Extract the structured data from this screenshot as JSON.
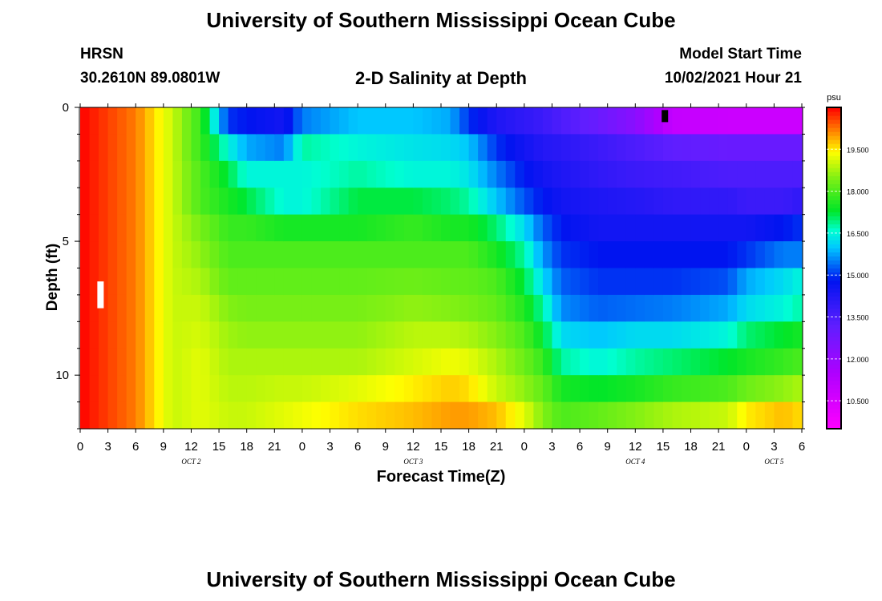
{
  "header": {
    "title": "University of Southern Mississippi Ocean Cube",
    "station": "HRSN",
    "coordinates": "30.2610N  89.0801W",
    "subtitle": "2-D Salinity at Depth",
    "model_start_label": "Model Start Time",
    "model_start_value": "10/02/2021 Hour 21"
  },
  "footer": {
    "title": "University of Southern Mississippi Ocean Cube"
  },
  "chart_data": {
    "type": "heatmap",
    "title": "2-D Salinity at Depth",
    "xlabel": "Forecast Time(Z)",
    "ylabel": "Depth (ft)",
    "x_unit": "hours from Oct 2 00Z",
    "x_range": [
      0,
      78
    ],
    "x_ticks": [
      0,
      3,
      6,
      9,
      12,
      15,
      18,
      21,
      24,
      27,
      30,
      33,
      36,
      39,
      42,
      45,
      48,
      51,
      54,
      57,
      60,
      63,
      66,
      69,
      72,
      75,
      78
    ],
    "x_tick_labels": [
      "0",
      "3",
      "6",
      "9",
      "12",
      "15",
      "18",
      "21",
      "0",
      "3",
      "6",
      "9",
      "12",
      "15",
      "18",
      "21",
      "0",
      "3",
      "6",
      "9",
      "12",
      "15",
      "18",
      "21",
      "0",
      "3",
      "6"
    ],
    "day_labels": [
      {
        "text": "OCT 2",
        "x": 12
      },
      {
        "text": "OCT 3",
        "x": 36
      },
      {
        "text": "OCT 4",
        "x": 60
      },
      {
        "text": "OCT 5",
        "x": 75
      }
    ],
    "y_range": [
      0,
      12
    ],
    "y_ticks_major": [
      0,
      5,
      10
    ],
    "y_tick_labels": [
      "0",
      "5",
      "10"
    ],
    "depth_levels_ft": [
      0.5,
      1.5,
      2.5,
      3.5,
      4.5,
      5.5,
      6.5,
      7.5,
      8.5,
      9.5,
      10.5,
      11.5
    ],
    "colorbar": {
      "unit": "psu",
      "min": 9.5,
      "max": 21.0,
      "tick_values": [
        10.5,
        12.0,
        13.5,
        15.0,
        16.5,
        18.0,
        19.5
      ],
      "tick_labels": [
        "10.500",
        "12.000",
        "13.500",
        "15.000",
        "16.500",
        "18.000",
        "19.500"
      ]
    },
    "salinity_keyframes": [
      {
        "hour": 0,
        "values": [
          21,
          21,
          21,
          21,
          21,
          21,
          21,
          21,
          21,
          21,
          21,
          21
        ]
      },
      {
        "hour": 6,
        "values": [
          20.2,
          20.2,
          20.2,
          20.2,
          20.2,
          20.2,
          20.2,
          20.2,
          20.2,
          20.2,
          20.2,
          20.2
        ]
      },
      {
        "hour": 10,
        "values": [
          19,
          19,
          19,
          19,
          19,
          19,
          19,
          19,
          19,
          19,
          19,
          19
        ]
      },
      {
        "hour": 13,
        "values": [
          17.8,
          17.8,
          18,
          18,
          18.4,
          18.6,
          18.8,
          19,
          19.1,
          19.2,
          19.2,
          19.2
        ]
      },
      {
        "hour": 16,
        "values": [
          15,
          16.5,
          17.2,
          17.5,
          17.8,
          18,
          18.2,
          18.5,
          18.7,
          18.8,
          18.9,
          19
        ]
      },
      {
        "hour": 18,
        "values": [
          14.8,
          15.8,
          16.5,
          17.2,
          17.8,
          18,
          18.2,
          18.4,
          18.6,
          18.8,
          18.9,
          19
        ]
      },
      {
        "hour": 22,
        "values": [
          14.5,
          15.5,
          16.5,
          16.5,
          17.5,
          18,
          18.2,
          18.4,
          18.6,
          18.8,
          19,
          19.2
        ]
      },
      {
        "hour": 24,
        "values": [
          15.5,
          16.8,
          16.5,
          16.5,
          17.5,
          18,
          18.2,
          18.4,
          18.6,
          18.8,
          19,
          19.3
        ]
      },
      {
        "hour": 30,
        "values": [
          16,
          16.5,
          16.8,
          17.2,
          17.5,
          18,
          18.2,
          18.4,
          18.6,
          18.8,
          19.2,
          19.6
        ]
      },
      {
        "hour": 36,
        "values": [
          16,
          16.3,
          16.5,
          17.2,
          17.8,
          18,
          18.3,
          18.6,
          18.9,
          19.1,
          19.5,
          19.8
        ]
      },
      {
        "hour": 40,
        "values": [
          15.8,
          16.2,
          16.5,
          17,
          17.5,
          18,
          18.2,
          18.5,
          18.9,
          19.3,
          19.7,
          20
        ]
      },
      {
        "hour": 42,
        "values": [
          15,
          16,
          16.3,
          16.8,
          17.5,
          18,
          18.2,
          18.4,
          18.8,
          19.2,
          19.6,
          20
        ]
      },
      {
        "hour": 45,
        "values": [
          14.3,
          15,
          15.5,
          16,
          17,
          17.5,
          18,
          18.2,
          18.5,
          18.8,
          19,
          19.8
        ]
      },
      {
        "hour": 48,
        "values": [
          14,
          14.5,
          14.8,
          15.2,
          16.2,
          16.8,
          17.2,
          17.6,
          18,
          18.3,
          18.6,
          19.2
        ]
      },
      {
        "hour": 50,
        "values": [
          13.8,
          14.2,
          14.5,
          14.8,
          15.3,
          15.7,
          16.2,
          16.8,
          17.3,
          17.8,
          18.2,
          18.5
        ]
      },
      {
        "hour": 52,
        "values": [
          13.5,
          14.1,
          14.3,
          14.5,
          14.8,
          15,
          15.3,
          15.6,
          16.2,
          16.8,
          17.5,
          18
        ]
      },
      {
        "hour": 56,
        "values": [
          13,
          13.8,
          14,
          14.3,
          14.5,
          14.8,
          15,
          15.3,
          16,
          16.5,
          17.3,
          18.2
        ]
      },
      {
        "hour": 60,
        "values": [
          12.3,
          13.5,
          13.8,
          14.2,
          14.5,
          14.8,
          15,
          15.4,
          16.2,
          16.8,
          17.5,
          18.5
        ]
      },
      {
        "hour": 64,
        "values": [
          11,
          13.2,
          13.7,
          14,
          14.5,
          14.8,
          15,
          15.5,
          16.2,
          17,
          17.8,
          18.8
        ]
      },
      {
        "hour": 70,
        "values": [
          10.8,
          13,
          13.5,
          14,
          14.5,
          14.8,
          15.2,
          15.8,
          16.5,
          17.3,
          18,
          19
        ]
      },
      {
        "hour": 72,
        "values": [
          10.8,
          13,
          13.5,
          13.8,
          14.5,
          15,
          15.8,
          16.2,
          17,
          17.5,
          18.3,
          19.5
        ]
      },
      {
        "hour": 76,
        "values": [
          10.8,
          13,
          13.5,
          13.8,
          14.8,
          15.5,
          16.2,
          16.5,
          17.3,
          17.8,
          18.6,
          19.8
        ]
      },
      {
        "hour": 78,
        "values": [
          10.8,
          13,
          13.5,
          14,
          15,
          15.5,
          16.5,
          16.8,
          17.5,
          18,
          18.8,
          19.6
        ]
      }
    ],
    "markers": [
      {
        "color": "#ffffff",
        "x": 2.2,
        "y_from": 6.5,
        "y_to": 7.5
      },
      {
        "color": "#000000",
        "x": 63.2,
        "y_from": 0.1,
        "y_to": 0.55
      }
    ],
    "grid": false,
    "legend": "colorbar-right"
  }
}
